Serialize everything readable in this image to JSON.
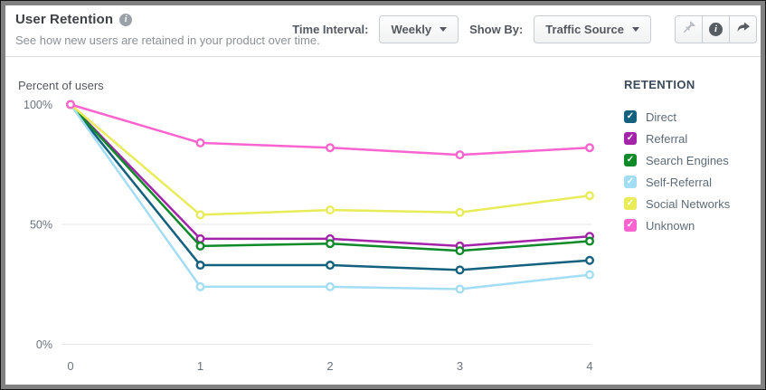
{
  "header": {
    "title": "User Retention",
    "subtitle": "See how new users are retained in your product over time.",
    "controls": {
      "time_interval_label": "Time Interval:",
      "time_interval_value": "Weekly",
      "show_by_label": "Show By:",
      "show_by_value": "Traffic Source"
    },
    "icons": {
      "info_glyph": "i",
      "info_button_glyph": "i"
    }
  },
  "legend": {
    "title": "RETENTION",
    "items": [
      {
        "label": "Direct",
        "color": "#14617f",
        "checked": true
      },
      {
        "label": "Referral",
        "color": "#a323a9",
        "checked": true
      },
      {
        "label": "Search Engines",
        "color": "#0f8a29",
        "checked": true
      },
      {
        "label": "Self-Referral",
        "color": "#a3ddf4",
        "checked": true
      },
      {
        "label": "Social Networks",
        "color": "#e8ec58",
        "checked": true
      },
      {
        "label": "Unknown",
        "color": "#f964cf",
        "checked": true
      }
    ]
  },
  "chart_data": {
    "type": "line",
    "title": "Percent of users",
    "x": [
      0,
      1,
      2,
      3,
      4
    ],
    "x_tick_labels": [
      "0",
      "1",
      "2",
      "3",
      "4"
    ],
    "y_ticks": [
      {
        "label": "100%",
        "value": 100
      },
      {
        "label": "50%",
        "value": 50
      },
      {
        "label": "0%",
        "value": 0
      }
    ],
    "ylim": [
      0,
      100
    ],
    "grid": "horizontal lines at 50% and 0%",
    "legend_position": "right",
    "series": [
      {
        "name": "Direct",
        "color": "#14617f",
        "values": [
          100,
          33,
          33,
          31,
          35
        ]
      },
      {
        "name": "Referral",
        "color": "#a323a9",
        "values": [
          100,
          44,
          44,
          41,
          45
        ]
      },
      {
        "name": "Search Engines",
        "color": "#0f8a29",
        "values": [
          100,
          41,
          42,
          39,
          43
        ]
      },
      {
        "name": "Self-Referral",
        "color": "#a3ddf4",
        "values": [
          100,
          24,
          24,
          23,
          29
        ]
      },
      {
        "name": "Social Networks",
        "color": "#e8ec58",
        "values": [
          100,
          54,
          56,
          55,
          62
        ]
      },
      {
        "name": "Unknown",
        "color": "#f964cf",
        "values": [
          100,
          84,
          82,
          79,
          82
        ]
      }
    ]
  },
  "colors": {
    "frame": "#818181",
    "frame_outline": "#141414",
    "divider": "#dcdcdc",
    "gridline": "#e7e7e7",
    "axis_text": "#6a737c",
    "title_text": "#3e4246",
    "subtitle_text": "#8a9095",
    "control_text": "#53585f",
    "pin_disabled": "#b7bdc3",
    "icon_dark": "#565c62"
  }
}
